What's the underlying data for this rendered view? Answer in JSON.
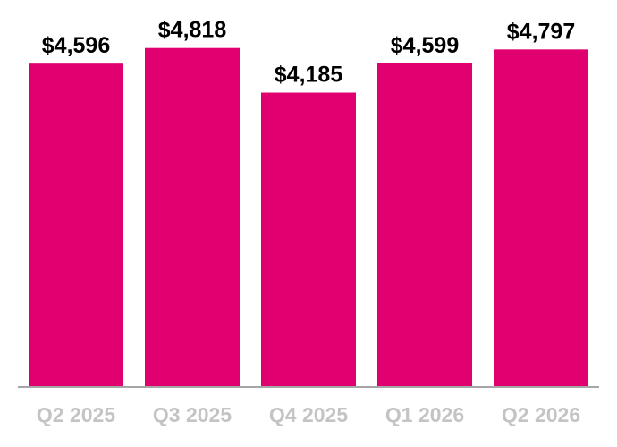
{
  "chart_data": {
    "type": "bar",
    "categories": [
      "Q2 2025",
      "Q3 2025",
      "Q4 2025",
      "Q1 2026",
      "Q2 2026"
    ],
    "values": [
      4596,
      4818,
      4185,
      4599,
      4797
    ],
    "data_labels": [
      "$4,596",
      "$4,818",
      "$4,185",
      "$4,599",
      "$4,797"
    ],
    "title": "",
    "xlabel": "",
    "ylabel": "",
    "ylim": [
      0,
      5500
    ],
    "grid": false,
    "legend": "none",
    "bar_color": "#e0006f",
    "axis_color": "#a6a6a6",
    "category_label_color": "#c4c4c4",
    "value_label_color": "#000000"
  }
}
